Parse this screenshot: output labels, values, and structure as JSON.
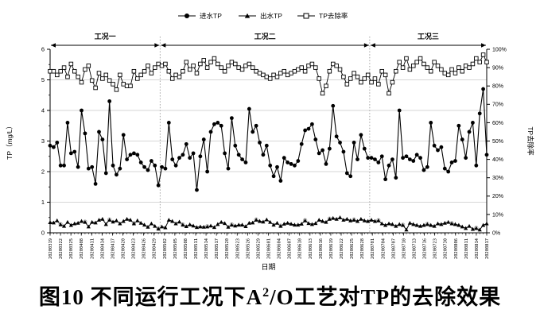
{
  "caption": {
    "prefix": "图10 不同运行工况下A",
    "sup": "2",
    "suffix": "/O工艺对TP的去除效果"
  },
  "colors": {
    "foreground": "#000000",
    "grid": "#c9c9c9",
    "separator": "#9a9a9a",
    "marker_fill_open": "#ffffff",
    "ghost_marker": "#aaaaaa"
  },
  "chart_data": {
    "type": "line",
    "title": "",
    "xlabel": "日期",
    "ylabel_left": "TP（mg/L）",
    "ylabel_right": "TP去除率",
    "ylim_left": [
      0,
      6
    ],
    "ylim_right": [
      0,
      100
    ],
    "y_left_ticks": [
      "0",
      "1",
      "2",
      "3",
      "4",
      "5",
      "6"
    ],
    "y_right_ticks": [
      "0%",
      "10%",
      "20%",
      "30%",
      "40%",
      "50%",
      "60%",
      "70%",
      "80%",
      "90%",
      "100%"
    ],
    "grid": "horizontal",
    "legend_position": "top-center",
    "sections": [
      {
        "label": "工况一"
      },
      {
        "label": "工况二"
      },
      {
        "label": "工况三"
      }
    ],
    "section_boundaries_index": [
      31.5,
      91.5
    ],
    "x_labels": [
      "20200319",
      "20200322",
      "20200325",
      "20200408",
      "20200411",
      "20200414",
      "20200417",
      "20200420",
      "20200423",
      "20200426",
      "20200429",
      "20200502",
      "20200505",
      "20200508",
      "20200511",
      "20200514",
      "20200517",
      "20200520",
      "20200523",
      "20200526",
      "20200529",
      "20200601",
      "20200604",
      "20200607",
      "20200610",
      "20200613",
      "20200616",
      "20200619",
      "20200622",
      "20200625",
      "20200628",
      "20200701",
      "20200704",
      "20200707",
      "20200710",
      "20200713",
      "20200716",
      "20200723",
      "20200730",
      "20200806",
      "20200811",
      "20200814",
      "20200817"
    ],
    "series": [
      {
        "name": "进水TP",
        "marker": "filled-circle",
        "axis": "left",
        "values": [
          2.85,
          2.8,
          2.95,
          2.2,
          2.2,
          3.6,
          2.6,
          2.65,
          2.15,
          4.0,
          3.25,
          2.1,
          2.15,
          1.6,
          3.3,
          3.05,
          1.95,
          4.3,
          2.2,
          1.9,
          2.1,
          3.2,
          2.4,
          2.55,
          2.6,
          2.55,
          2.3,
          2.15,
          2.05,
          2.35,
          2.2,
          1.55,
          2.15,
          2.1,
          3.6,
          2.4,
          2.2,
          2.45,
          2.55,
          2.9,
          2.45,
          2.6,
          1.4,
          2.5,
          3.05,
          2.0,
          3.3,
          3.55,
          3.6,
          3.5,
          2.6,
          2.1,
          3.75,
          2.85,
          2.55,
          2.4,
          2.3,
          4.05,
          3.3,
          3.5,
          2.95,
          2.55,
          2.85,
          2.2,
          1.85,
          2.15,
          1.7,
          2.45,
          2.3,
          2.25,
          2.2,
          2.35,
          2.9,
          3.35,
          3.4,
          3.55,
          3.05,
          2.6,
          2.7,
          2.25,
          2.75,
          4.15,
          3.15,
          2.95,
          2.65,
          1.95,
          1.85,
          2.95,
          2.4,
          3.2,
          2.75,
          2.45,
          2.45,
          2.4,
          2.3,
          2.5,
          1.75,
          2.2,
          2.4,
          1.8,
          4.0,
          2.45,
          2.5,
          2.4,
          2.35,
          2.55,
          2.45,
          2.05,
          2.15,
          3.6,
          2.85,
          2.7,
          2.8,
          2.1,
          2.0,
          2.3,
          2.35,
          3.5,
          3.05,
          2.45,
          3.3,
          3.6,
          2.2,
          3.9,
          4.7,
          2.55
        ]
      },
      {
        "name": "出水TP",
        "marker": "filled-triangle",
        "axis": "left",
        "values": [
          0.34,
          0.33,
          0.4,
          0.27,
          0.22,
          0.35,
          0.25,
          0.3,
          0.32,
          0.38,
          0.35,
          0.2,
          0.35,
          0.33,
          0.42,
          0.45,
          0.28,
          0.42,
          0.36,
          0.4,
          0.3,
          0.38,
          0.45,
          0.42,
          0.3,
          0.4,
          0.32,
          0.26,
          0.19,
          0.3,
          0.22,
          0.13,
          0.2,
          0.17,
          0.42,
          0.38,
          0.3,
          0.36,
          0.26,
          0.21,
          0.27,
          0.23,
          0.18,
          0.2,
          0.19,
          0.2,
          0.23,
          0.18,
          0.28,
          0.35,
          0.31,
          0.19,
          0.26,
          0.23,
          0.26,
          0.26,
          0.21,
          0.32,
          0.33,
          0.42,
          0.38,
          0.36,
          0.43,
          0.35,
          0.26,
          0.32,
          0.22,
          0.29,
          0.32,
          0.29,
          0.26,
          0.26,
          0.29,
          0.4,
          0.31,
          0.28,
          0.31,
          0.42,
          0.38,
          0.35,
          0.45,
          0.48,
          0.45,
          0.5,
          0.42,
          0.45,
          0.4,
          0.42,
          0.38,
          0.45,
          0.4,
          0.38,
          0.42,
          0.38,
          0.4,
          0.3,
          0.25,
          0.3,
          0.28,
          0.22,
          0.28,
          0.25,
          0.1,
          0.32,
          0.28,
          0.25,
          0.22,
          0.25,
          0.28,
          0.25,
          0.22,
          0.3,
          0.28,
          0.32,
          0.35,
          0.3,
          0.28,
          0.25,
          0.2,
          0.15,
          0.22,
          0.12,
          0.15,
          0.1,
          0.25,
          0.3
        ]
      },
      {
        "name": "TP去除率",
        "marker": "open-square",
        "axis": "right",
        "values": [
          88,
          88,
          86,
          88,
          90,
          85,
          92,
          88,
          85,
          82,
          89,
          91,
          83,
          79,
          87,
          84,
          86,
          83,
          81,
          78,
          86,
          81,
          80,
          80,
          88,
          84,
          86,
          88,
          91,
          87,
          90,
          92,
          91,
          92,
          88,
          84,
          86,
          85,
          88,
          93,
          89,
          91,
          87,
          92,
          94,
          90,
          93,
          95,
          92,
          90,
          88,
          91,
          93,
          92,
          90,
          89,
          91,
          92,
          90,
          88,
          87,
          86,
          85,
          84,
          86,
          85,
          87,
          88,
          86,
          87,
          88,
          89,
          90,
          88,
          91,
          92,
          90,
          84,
          76,
          80,
          88,
          92,
          91,
          89,
          85,
          81,
          84,
          87,
          85,
          82,
          84,
          86,
          82,
          84,
          81,
          88,
          86,
          76,
          82,
          88,
          93,
          90,
          95,
          89,
          91,
          93,
          95,
          92,
          90,
          88,
          93,
          91,
          89,
          87,
          86,
          89,
          87,
          90,
          88,
          91,
          90,
          92,
          95,
          93,
          97,
          93
        ]
      }
    ]
  }
}
